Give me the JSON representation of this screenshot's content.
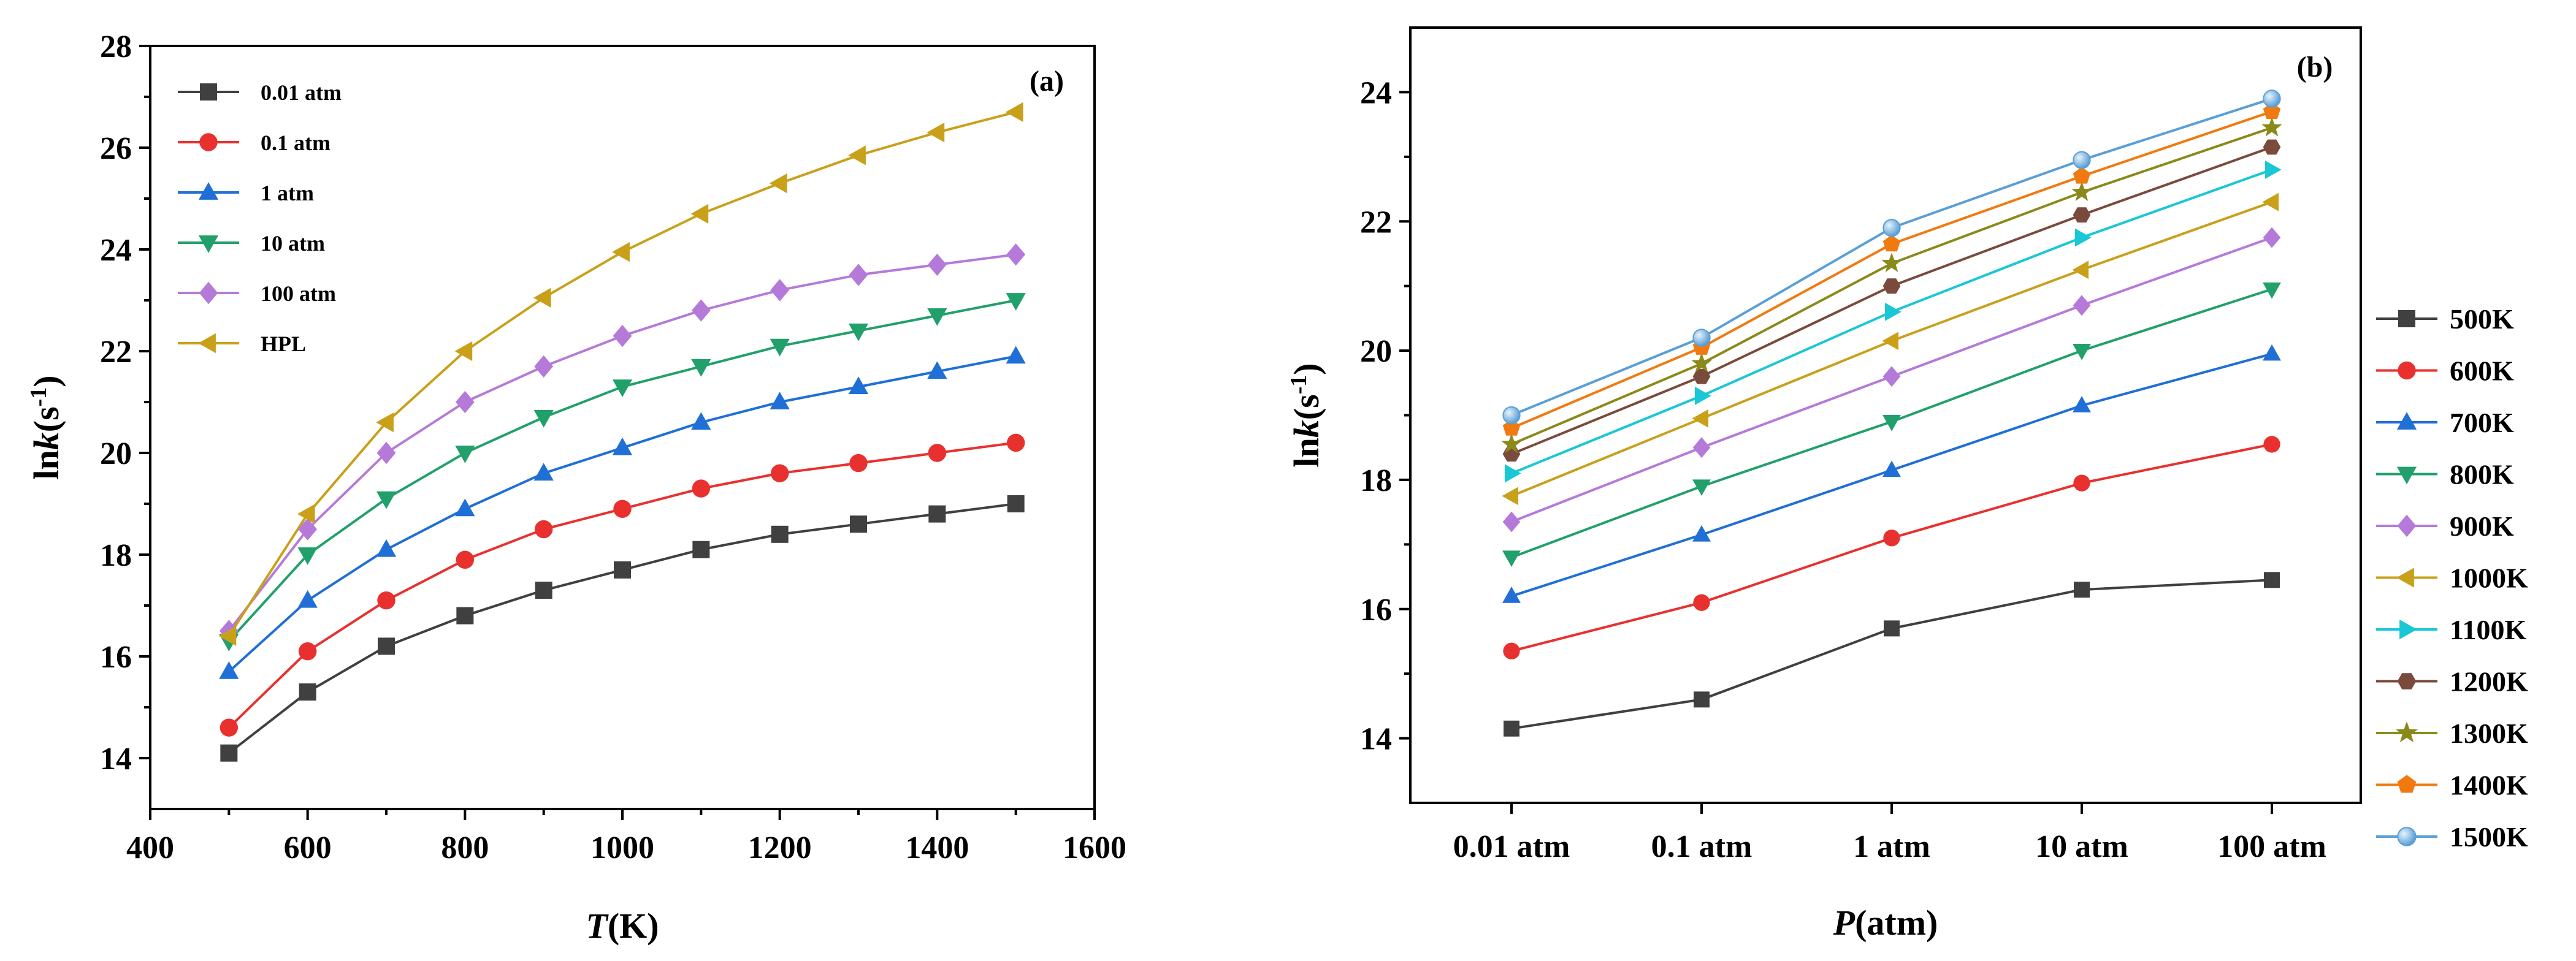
{
  "chart_data": [
    {
      "type": "line",
      "panel_label": "(a)",
      "xlabel_italic": "T",
      "xlabel_rest": "(K)",
      "ylabel_pre": "ln",
      "ylabel_italic": "k",
      "ylabel_unit": "(s",
      "ylabel_exp": "-1",
      "ylabel_close": ")",
      "xlim": [
        400,
        1600
      ],
      "ylim": [
        13,
        28
      ],
      "xticks": [
        400,
        600,
        800,
        1000,
        1200,
        1400,
        1600
      ],
      "yticks": [
        14,
        16,
        18,
        20,
        22,
        24,
        26,
        28
      ],
      "x": [
        500,
        600,
        700,
        800,
        900,
        1000,
        1100,
        1200,
        1300,
        1400,
        1500
      ],
      "legend_position": "top-left",
      "series": [
        {
          "name": "0.01 atm",
          "color": "#404040",
          "marker": "square",
          "values": [
            14.1,
            15.3,
            16.2,
            16.8,
            17.3,
            17.7,
            18.1,
            18.4,
            18.6,
            18.8,
            19.0
          ]
        },
        {
          "name": "0.1 atm",
          "color": "#e8312f",
          "marker": "circle",
          "values": [
            14.6,
            16.1,
            17.1,
            17.9,
            18.5,
            18.9,
            19.3,
            19.6,
            19.8,
            20.0,
            20.2
          ]
        },
        {
          "name": "1 atm",
          "color": "#1f6fd6",
          "marker": "triangle-up",
          "values": [
            15.7,
            17.1,
            18.1,
            18.9,
            19.6,
            20.1,
            20.6,
            21.0,
            21.3,
            21.6,
            21.9
          ]
        },
        {
          "name": "10 atm",
          "color": "#22a06b",
          "marker": "triangle-down",
          "values": [
            16.3,
            18.0,
            19.1,
            20.0,
            20.7,
            21.3,
            21.7,
            22.1,
            22.4,
            22.7,
            23.0
          ]
        },
        {
          "name": "100 atm",
          "color": "#b57ad9",
          "marker": "diamond",
          "values": [
            16.5,
            18.5,
            20.0,
            21.0,
            21.7,
            22.3,
            22.8,
            23.2,
            23.5,
            23.7,
            23.9
          ]
        },
        {
          "name": "HPL",
          "color": "#c9a01a",
          "marker": "triangle-left",
          "values": [
            16.4,
            18.8,
            20.6,
            22.0,
            23.05,
            23.95,
            24.7,
            25.3,
            25.85,
            26.3,
            26.7
          ]
        }
      ]
    },
    {
      "type": "line",
      "panel_label": "(b)",
      "xlabel_italic": "P",
      "xlabel_rest": "(atm)",
      "ylabel_pre": "ln",
      "ylabel_italic": "k",
      "ylabel_unit": "(s",
      "ylabel_exp": "-1",
      "ylabel_close": ")",
      "ylim": [
        13,
        25
      ],
      "yticks": [
        14,
        16,
        18,
        20,
        22,
        24
      ],
      "categories": [
        "0.01 atm",
        "0.1 atm",
        "1 atm",
        "10 atm",
        "100 atm"
      ],
      "legend_position": "right",
      "series": [
        {
          "name": "500K",
          "color": "#404040",
          "marker": "square",
          "values": [
            14.15,
            14.6,
            15.7,
            16.3,
            16.45
          ]
        },
        {
          "name": "600K",
          "color": "#e8312f",
          "marker": "circle",
          "values": [
            15.35,
            16.1,
            17.1,
            17.95,
            18.55
          ]
        },
        {
          "name": "700K",
          "color": "#1f6fd6",
          "marker": "triangle-up",
          "values": [
            16.2,
            17.15,
            18.15,
            19.15,
            19.95
          ]
        },
        {
          "name": "800K",
          "color": "#22a06b",
          "marker": "triangle-down",
          "values": [
            16.8,
            17.9,
            18.9,
            20.0,
            20.95
          ]
        },
        {
          "name": "900K",
          "color": "#b57ad9",
          "marker": "diamond",
          "values": [
            17.35,
            18.5,
            19.6,
            20.7,
            21.75
          ]
        },
        {
          "name": "1000K",
          "color": "#c9a01a",
          "marker": "triangle-left",
          "values": [
            17.75,
            18.95,
            20.15,
            21.25,
            22.3
          ]
        },
        {
          "name": "1100K",
          "color": "#19c7d6",
          "marker": "triangle-right",
          "values": [
            18.1,
            19.3,
            20.6,
            21.75,
            22.8
          ]
        },
        {
          "name": "1200K",
          "color": "#7a4a3c",
          "marker": "hexagon",
          "values": [
            18.4,
            19.6,
            21.0,
            22.1,
            23.15
          ]
        },
        {
          "name": "1300K",
          "color": "#8a8a1a",
          "marker": "star",
          "values": [
            18.55,
            19.8,
            21.35,
            22.45,
            23.45
          ]
        },
        {
          "name": "1400K",
          "color": "#f07a10",
          "marker": "pentagon",
          "values": [
            18.8,
            20.05,
            21.65,
            22.7,
            23.7
          ]
        },
        {
          "name": "1500K",
          "color": "#5a9fd6",
          "marker": "sphere",
          "values": [
            19.0,
            20.2,
            21.9,
            22.95,
            23.9
          ]
        }
      ]
    }
  ]
}
